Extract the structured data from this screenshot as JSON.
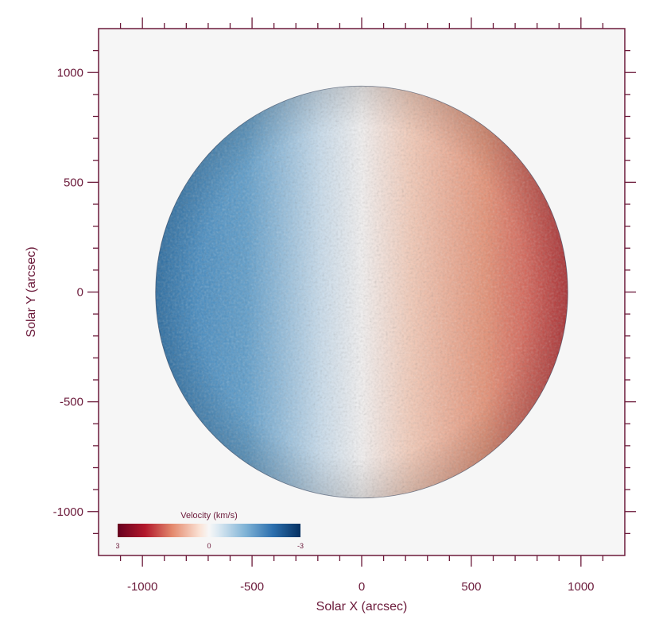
{
  "chart_data": {
    "type": "heatmap",
    "title": "",
    "xlabel": "Solar X (arcsec)",
    "ylabel": "Solar Y (arcsec)",
    "xlim": [
      -1200,
      1200
    ],
    "ylim": [
      -1200,
      1200
    ],
    "x_ticks": [
      -1000,
      -500,
      0,
      500,
      1000
    ],
    "y_ticks": [
      1000,
      500,
      0,
      -500,
      -1000
    ],
    "x_tick_labels": [
      "-1000",
      "-500",
      "0",
      "500",
      "1000"
    ],
    "y_tick_labels": [
      "1000",
      "500",
      "0",
      "-500",
      "-1000"
    ],
    "minor_tick_step": 100,
    "grid": false,
    "disk": {
      "center": [
        0,
        0
      ],
      "radius": 940
    },
    "velocity_field": {
      "description_of_values": "line-of-sight velocity, negative (approaching) on east limb, positive (receding) on west limb",
      "east_limb_value": -2.2,
      "center_value": 0,
      "west_limb_value": 2.2
    },
    "colorbar": {
      "label": "Velocity (km/s)",
      "ticks": [
        3,
        0,
        -3
      ],
      "tick_labels": [
        "3",
        "0",
        "-3"
      ],
      "placement": "bottom-left",
      "colormap": "RdBu"
    },
    "colors": {
      "axis": "#6b1a3a",
      "background": "#f6f6f6",
      "positive_max": "#67001f",
      "neutral": "#f7f7f7",
      "negative_max": "#053061"
    }
  }
}
